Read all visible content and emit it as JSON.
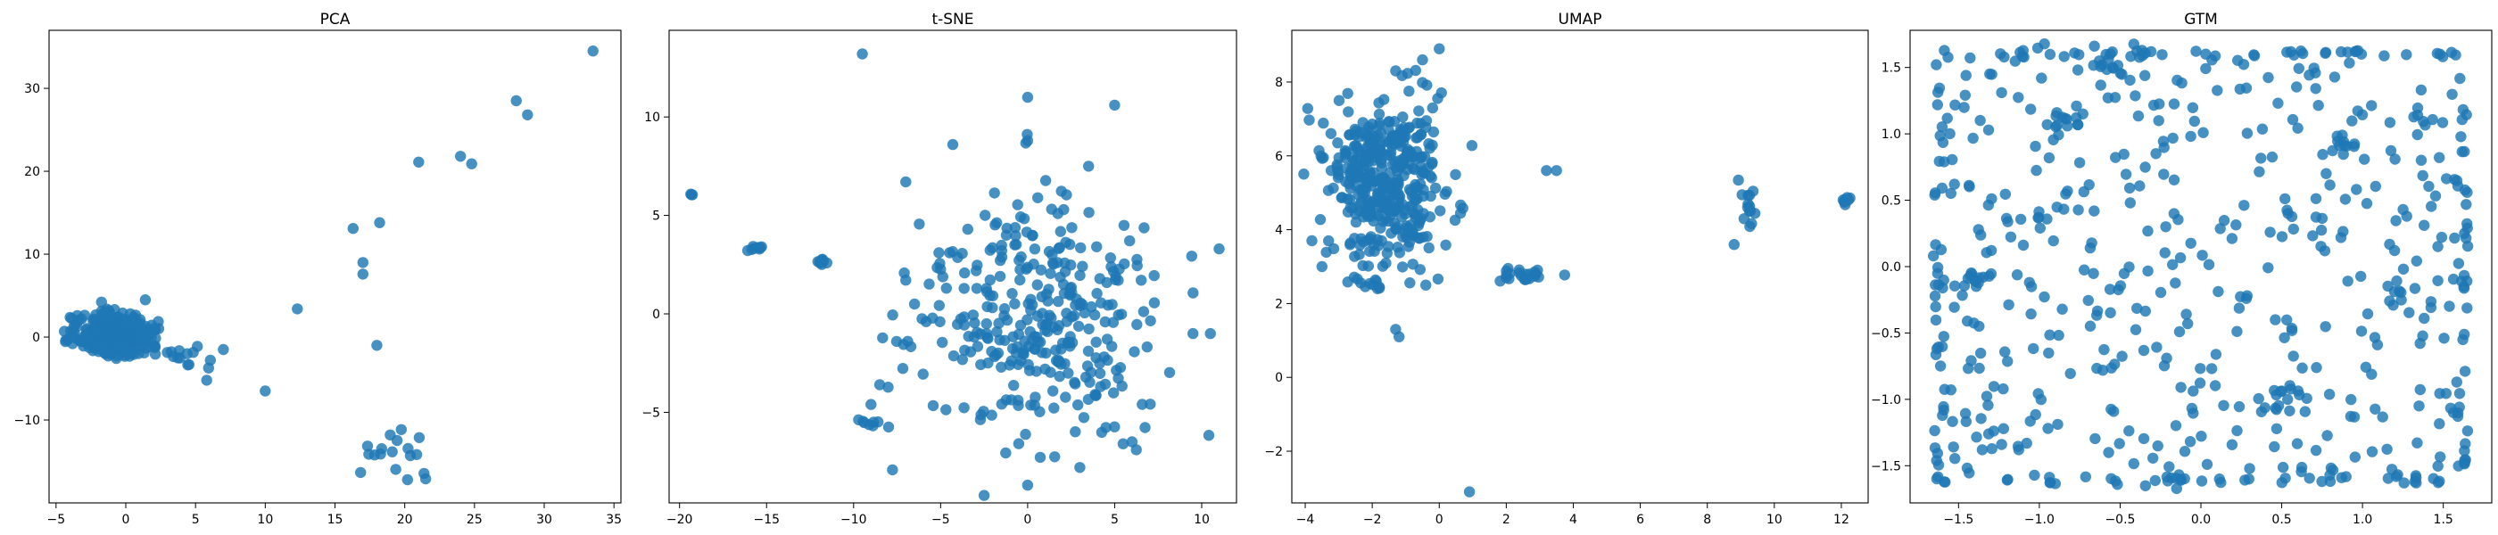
{
  "colors": {
    "point": "#1f77b4",
    "axis": "#000000",
    "background": "#ffffff"
  },
  "chart_data": [
    {
      "type": "scatter",
      "title": "PCA",
      "xlabel": "",
      "ylabel": "",
      "xlim": [
        -5.5,
        35.5
      ],
      "ylim": [
        -20,
        37
      ],
      "xticks": [
        -5,
        0,
        5,
        10,
        15,
        20,
        25,
        30,
        35
      ],
      "yticks": [
        -10,
        0,
        10,
        20,
        30
      ],
      "grid": false,
      "legend": "none",
      "clusters": [
        {
          "cx": -0.8,
          "cy": 0.3,
          "sx": 1.3,
          "sy": 1.2,
          "n": 420
        },
        {
          "cx": 4.3,
          "cy": -2.7,
          "sx": 1.3,
          "sy": 0.9,
          "n": 14
        },
        {
          "cx": 18.7,
          "cy": -14.2,
          "sx": 1.6,
          "sy": 1.9,
          "n": 16
        }
      ],
      "points": [
        [
          33.5,
          34.5
        ],
        [
          28.0,
          28.5
        ],
        [
          28.8,
          26.8
        ],
        [
          24.0,
          21.8
        ],
        [
          24.8,
          20.9
        ],
        [
          21.0,
          21.1
        ],
        [
          18.2,
          13.8
        ],
        [
          16.3,
          13.1
        ],
        [
          17.0,
          9.0
        ],
        [
          17.0,
          7.6
        ],
        [
          12.3,
          3.4
        ],
        [
          18.0,
          -1.0
        ],
        [
          10.0,
          -6.5
        ],
        [
          5.8,
          -5.2
        ],
        [
          20.2,
          -17.2
        ],
        [
          21.5,
          -17.1
        ],
        [
          7.0,
          -1.5
        ],
        [
          1.4,
          4.5
        ]
      ]
    },
    {
      "type": "scatter",
      "title": "t-SNE",
      "xlabel": "",
      "ylabel": "",
      "xlim": [
        -20.6,
        12.0
      ],
      "ylim": [
        -9.6,
        14.4
      ],
      "xticks": [
        -20,
        -15,
        -10,
        -5,
        0,
        5,
        10
      ],
      "yticks": [
        -5,
        0,
        5,
        10
      ],
      "grid": false,
      "legend": "none",
      "clusters": [
        {
          "cx": 0.5,
          "cy": -0.3,
          "sx": 3.4,
          "sy": 2.9,
          "n": 330
        },
        {
          "cx": -15.8,
          "cy": 3.3,
          "sx": 0.25,
          "sy": 0.07,
          "n": 8
        },
        {
          "cx": -11.6,
          "cy": 2.75,
          "sx": 0.4,
          "sy": 0.1,
          "n": 8
        },
        {
          "cx": -8.9,
          "cy": -5.6,
          "sx": 0.4,
          "sy": 0.1,
          "n": 8
        },
        {
          "cx": -19.3,
          "cy": 6.1,
          "sx": 0.05,
          "sy": 0.05,
          "n": 3
        }
      ],
      "points": [
        [
          -9.5,
          13.2
        ],
        [
          0.0,
          11.0
        ],
        [
          5.0,
          10.6
        ],
        [
          0.0,
          8.8
        ],
        [
          -4.3,
          8.6
        ],
        [
          -7.0,
          6.7
        ],
        [
          11.0,
          3.3
        ],
        [
          -9.0,
          -4.6
        ],
        [
          -8.5,
          -3.6
        ],
        [
          0.0,
          -8.7
        ],
        [
          3.0,
          -7.8
        ],
        [
          6.0,
          -6.5
        ],
        [
          9.5,
          -1.0
        ],
        [
          -6.5,
          0.5
        ],
        [
          10.5,
          -1.0
        ],
        [
          3.5,
          7.5
        ]
      ]
    },
    {
      "type": "scatter",
      "title": "UMAP",
      "xlabel": "",
      "ylabel": "",
      "xlim": [
        -4.4,
        12.8
      ],
      "ylim": [
        -3.4,
        9.4
      ],
      "xticks": [
        -4,
        -2,
        0,
        2,
        4,
        6,
        8,
        10,
        12
      ],
      "yticks": [
        -2,
        0,
        2,
        4,
        6,
        8
      ],
      "grid": false,
      "legend": "none",
      "clusters": [
        {
          "cx": -1.6,
          "cy": 5.4,
          "sx": 0.85,
          "sy": 1.1,
          "n": 400
        },
        {
          "cx": 2.5,
          "cy": 2.75,
          "sx": 0.45,
          "sy": 0.12,
          "n": 22
        },
        {
          "cx": 9.2,
          "cy": 4.7,
          "sx": 0.12,
          "sy": 0.4,
          "n": 14
        },
        {
          "cx": 12.1,
          "cy": 4.75,
          "sx": 0.07,
          "sy": 0.08,
          "n": 8
        },
        {
          "cx": -2.3,
          "cy": 2.55,
          "sx": 0.25,
          "sy": 0.07,
          "n": 8
        }
      ],
      "points": [
        [
          0.0,
          8.9
        ],
        [
          -0.5,
          8.6
        ],
        [
          -1.3,
          1.3
        ],
        [
          -1.2,
          1.1
        ],
        [
          0.9,
          -3.1
        ],
        [
          3.5,
          5.6
        ],
        [
          3.2,
          5.6
        ],
        [
          8.8,
          3.6
        ],
        [
          -3.8,
          3.7
        ],
        [
          -3.5,
          3.0
        ],
        [
          -0.4,
          2.5
        ],
        [
          -1.3,
          8.3
        ]
      ]
    },
    {
      "type": "scatter",
      "title": "GTM",
      "xlabel": "",
      "ylabel": "",
      "xlim": [
        -1.8,
        1.8
      ],
      "ylim": [
        -1.78,
        1.78
      ],
      "xticks": [
        -1.5,
        -1.0,
        -0.5,
        0.0,
        0.5,
        1.0,
        1.5
      ],
      "yticks": [
        -1.5,
        -1.0,
        -0.5,
        0.0,
        0.5,
        1.0,
        1.5
      ],
      "grid": false,
      "legend": "none",
      "clusters": [
        {
          "cx": 0.0,
          "cy": 0.0,
          "sx": 1.68,
          "sy": 1.68,
          "n": 420,
          "distribution": "uniform"
        },
        {
          "cx": 0.0,
          "cy": 1.6,
          "sx": 1.6,
          "sy": 0.03,
          "n": 40,
          "distribution": "uniform"
        },
        {
          "cx": 0.0,
          "cy": -1.6,
          "sx": 1.6,
          "sy": 0.03,
          "n": 40,
          "distribution": "uniform"
        },
        {
          "cx": -1.62,
          "cy": 0.0,
          "sx": 0.03,
          "sy": 1.6,
          "n": 30,
          "distribution": "uniform"
        },
        {
          "cx": 1.62,
          "cy": 0.0,
          "sx": 0.03,
          "sy": 1.6,
          "n": 30,
          "distribution": "uniform"
        },
        {
          "cx": -0.6,
          "cy": 1.52,
          "sx": 0.07,
          "sy": 0.07,
          "n": 14
        },
        {
          "cx": 0.55,
          "cy": -1.0,
          "sx": 0.06,
          "sy": 0.05,
          "n": 10
        },
        {
          "cx": -1.4,
          "cy": -0.1,
          "sx": 0.05,
          "sy": 0.05,
          "n": 10
        },
        {
          "cx": 0.85,
          "cy": 0.9,
          "sx": 0.06,
          "sy": 0.03,
          "n": 10
        },
        {
          "cx": 1.2,
          "cy": -0.2,
          "sx": 0.05,
          "sy": 0.05,
          "n": 8
        },
        {
          "cx": -0.8,
          "cy": 1.1,
          "sx": 0.1,
          "sy": 0.08,
          "n": 10
        }
      ],
      "points": []
    }
  ]
}
